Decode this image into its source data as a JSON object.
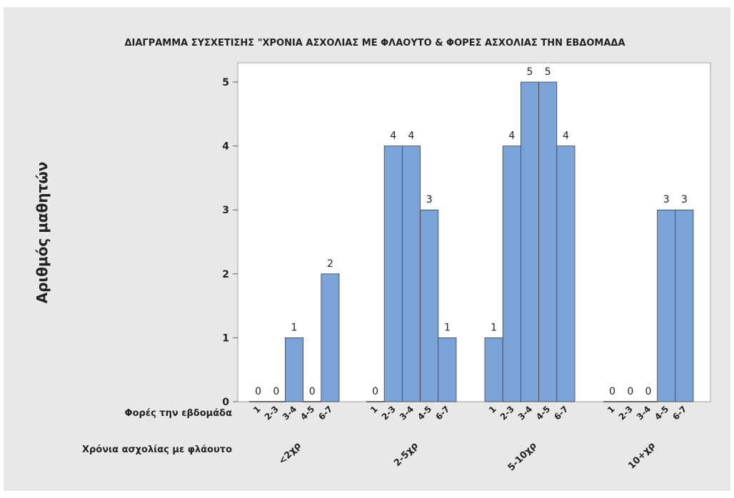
{
  "chart_data": {
    "type": "bar",
    "title": "ΔΙΑΓΡΑΜΜΑ ΣΥΣΧΕΤΙΣΗΣ \"ΧΡΟΝΙΑ ΑΣΧΟΛΙΑΣ ΜΕ ΦΛΑΟΥΤΟ & ΦΟΡΕΣ ΑΣΧΟΛΙΑΣ ΤΗΝ ΕΒΔΟΜΑΔΑ",
    "ylabel": "Αριθμός μαθητών",
    "xlabel_inner": "Φορές την εβδομάδα",
    "xlabel_outer": "Χρόνια ασχολίας με φλάουτο",
    "ylim": [
      0,
      5.5
    ],
    "yticks": [
      0,
      1,
      2,
      3,
      4,
      5
    ],
    "grid": false,
    "bar_color": "#7ba3d8",
    "bar_edge_color": "#404040",
    "background_color": "#e8e8e8",
    "plot_background_color": "#ffffff",
    "groups": [
      {
        "name": "<2χρ",
        "categories": [
          "1",
          "2-3",
          "3-4",
          "4-5",
          "6-7"
        ],
        "values": [
          0,
          0,
          1,
          0,
          2
        ]
      },
      {
        "name": "2-5χρ",
        "categories": [
          "1",
          "2-3",
          "3-4",
          "4-5",
          "6-7"
        ],
        "values": [
          0,
          4,
          4,
          3,
          1
        ]
      },
      {
        "name": "5-10χρ",
        "categories": [
          "1",
          "2-3",
          "3-4",
          "4-5",
          "6-7"
        ],
        "values": [
          1,
          4,
          5,
          5,
          4
        ]
      },
      {
        "name": "10+χρ",
        "categories": [
          "1",
          "2-3",
          "3-4",
          "4-5",
          "6-7"
        ],
        "values": [
          0,
          0,
          0,
          3,
          3
        ]
      }
    ]
  }
}
